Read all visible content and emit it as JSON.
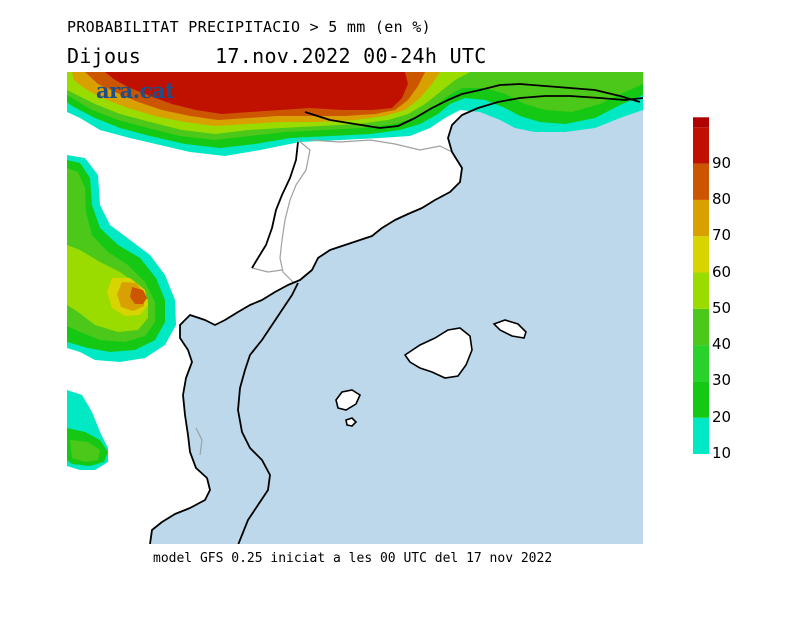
{
  "header": {
    "line1": "PROBABILITAT PRECIPITACIO > 5 mm (en %)",
    "day": "Dijous",
    "period": "17.nov.2022 00-24h UTC"
  },
  "logo": "ara.cat",
  "footer": "model GFS 0.25 iniciat a les 00 UTC del 17 nov 2022",
  "colorbar": {
    "levels": [
      {
        "value": "10",
        "color": "#00e8c4"
      },
      {
        "value": "20",
        "color": "#14c814"
      },
      {
        "value": "30",
        "color": "#28d22a"
      },
      {
        "value": "40",
        "color": "#4cc81a"
      },
      {
        "value": "50",
        "color": "#9adc00"
      },
      {
        "value": "60",
        "color": "#d8d400"
      },
      {
        "value": "70",
        "color": "#d8a000"
      },
      {
        "value": "80",
        "color": "#cc5500"
      },
      {
        "value": "90",
        "color": "#c01000"
      }
    ],
    "top_color": "#b00000"
  },
  "colors": {
    "sea": "#bcd8ea",
    "land": "#ffffff",
    "coast": "#000000",
    "border": "#a0a0a0"
  }
}
